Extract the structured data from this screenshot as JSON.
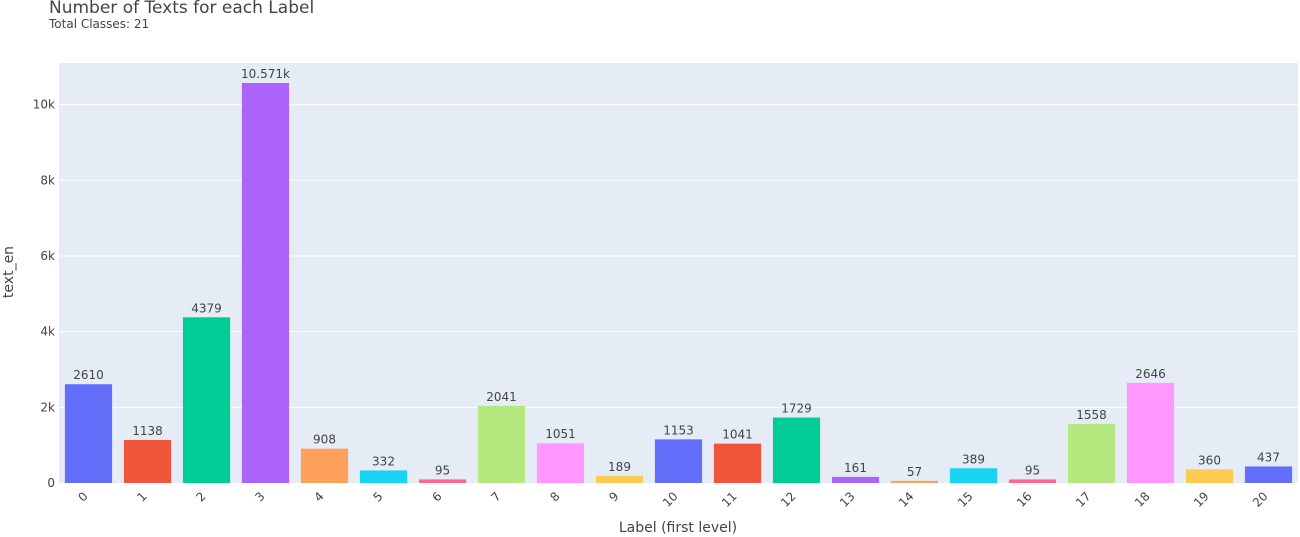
{
  "chart_data": {
    "type": "bar",
    "title": "Number of Texts for each Label",
    "subtitle": "Total Classes: 21",
    "xlabel": "Label (first level)",
    "ylabel": "text_en",
    "categories": [
      "0",
      "1",
      "2",
      "3",
      "4",
      "5",
      "6",
      "7",
      "8",
      "9",
      "10",
      "11",
      "12",
      "13",
      "14",
      "15",
      "16",
      "17",
      "18",
      "19",
      "20"
    ],
    "values": [
      2610,
      1138,
      4379,
      10571,
      908,
      332,
      95,
      2041,
      1051,
      189,
      1153,
      1041,
      1729,
      161,
      57,
      389,
      95,
      1558,
      2646,
      360,
      437
    ],
    "value_labels": [
      "2610",
      "1138",
      "4379",
      "10.571k",
      "908",
      "332",
      "95",
      "2041",
      "1051",
      "189",
      "1153",
      "1041",
      "1729",
      "161",
      "57",
      "389",
      "95",
      "1558",
      "2646",
      "360",
      "437"
    ],
    "colors": [
      "#636efa",
      "#ef553b",
      "#00cc96",
      "#ab63fa",
      "#ffa15a",
      "#19d3f3",
      "#ff6692",
      "#b6e880",
      "#ff97ff",
      "#fecb52",
      "#636efa",
      "#ef553b",
      "#00cc96",
      "#ab63fa",
      "#ffa15a",
      "#19d3f3",
      "#ff6692",
      "#b6e880",
      "#ff97ff",
      "#fecb52",
      "#636efa"
    ],
    "ylim": [
      0,
      11100
    ],
    "yticks": [
      0,
      2000,
      4000,
      6000,
      8000,
      10000
    ],
    "ytick_labels": [
      "0",
      "2k",
      "4k",
      "6k",
      "8k",
      "10k"
    ],
    "grid": true,
    "plot_bgcolor": "#e5ecf6"
  }
}
